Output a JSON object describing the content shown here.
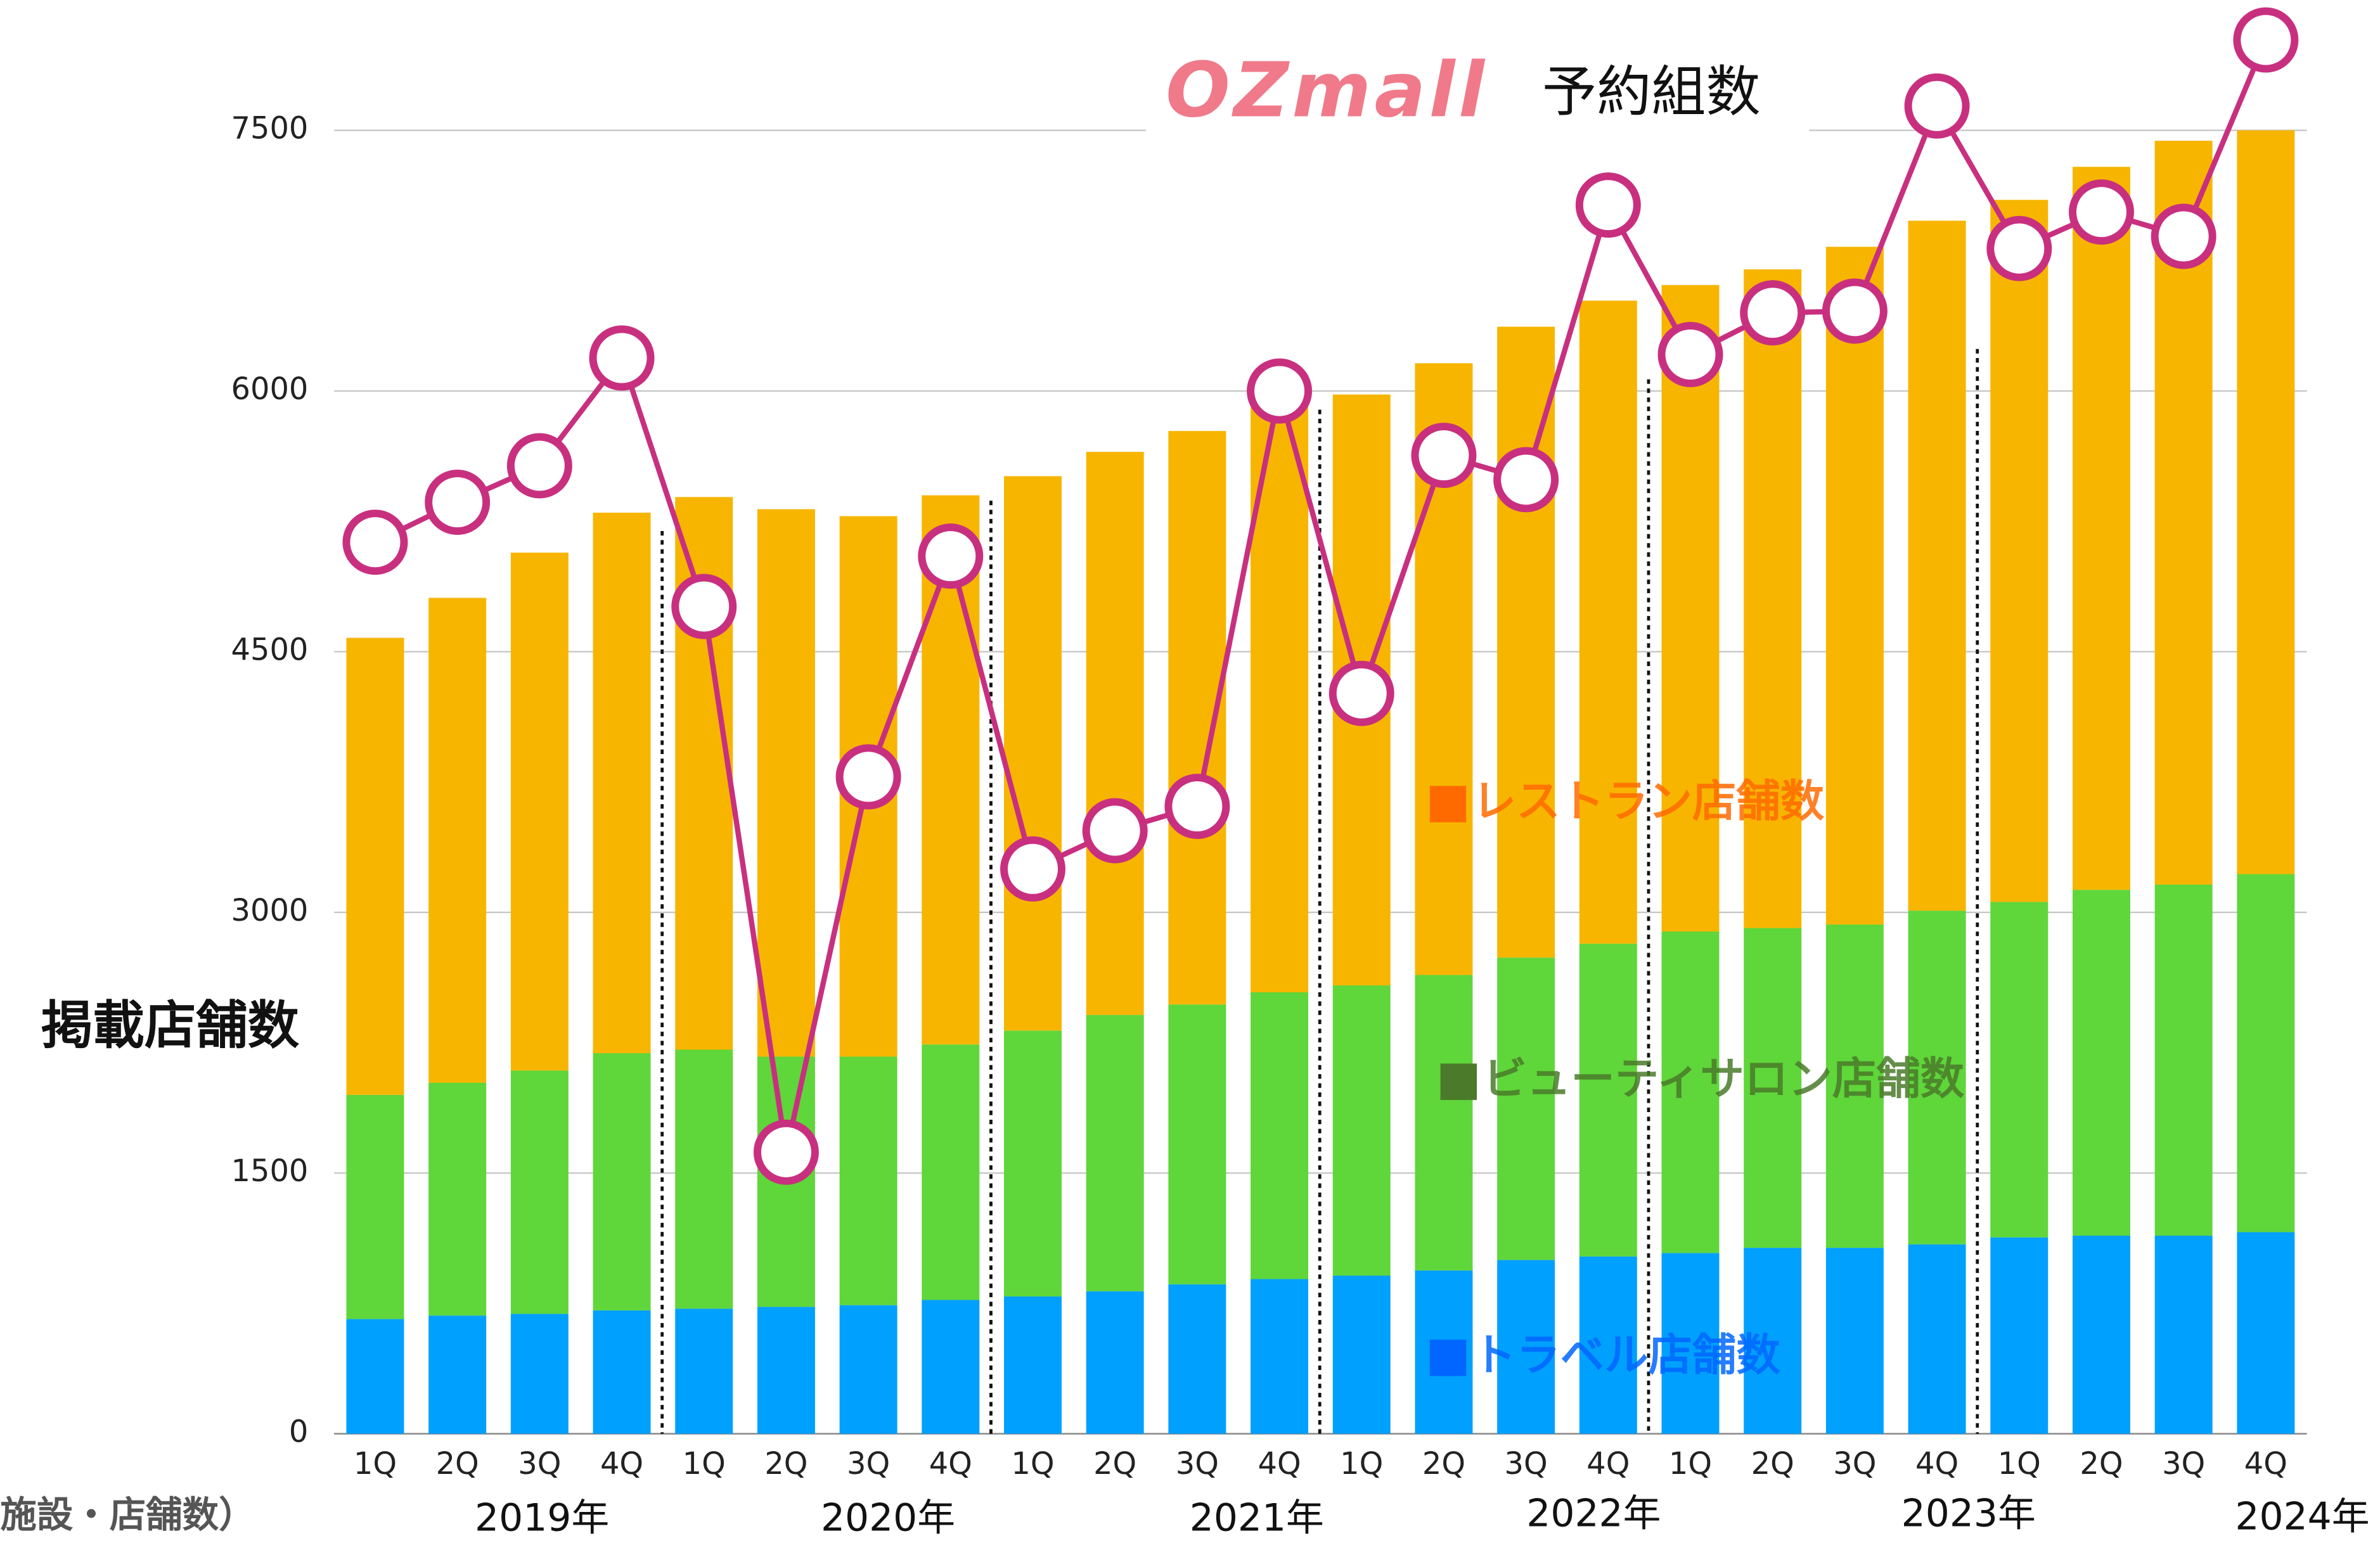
{
  "chart_data": {
    "type": "bar",
    "stacked": true,
    "logo": "OZmall",
    "y_axis_label": "掲載店舗数",
    "unit_note": "施設・店舗数）",
    "categories": [
      "1Q",
      "2Q",
      "3Q",
      "4Q",
      "1Q",
      "2Q",
      "3Q",
      "4Q",
      "1Q",
      "2Q",
      "3Q",
      "4Q",
      "1Q",
      "2Q",
      "3Q",
      "4Q",
      "1Q",
      "2Q",
      "3Q",
      "4Q",
      "1Q",
      "2Q",
      "3Q",
      "4Q"
    ],
    "years": [
      "2019年",
      "2020年",
      "2021年",
      "2022年",
      "2023年",
      "2024年"
    ],
    "ylim": [
      0,
      8250
    ],
    "yticks": [
      0,
      1500,
      3000,
      4500,
      6000,
      7500
    ],
    "grid": true,
    "series": [
      {
        "name": "トラベル店舗数",
        "color": "#00a0ff",
        "legend_color": "#0066ff",
        "values": [
          660,
          680,
          690,
          710,
          720,
          730,
          740,
          770,
          790,
          820,
          860,
          890,
          910,
          940,
          1000,
          1020,
          1040,
          1070,
          1070,
          1090,
          1130,
          1140,
          1140,
          1160
        ]
      },
      {
        "name": "ビューティサロン店舗数",
        "color": "#5fd63a",
        "legend_color": "#4a7a2a",
        "values": [
          1290,
          1340,
          1400,
          1480,
          1490,
          1440,
          1430,
          1470,
          1530,
          1590,
          1610,
          1650,
          1670,
          1700,
          1740,
          1800,
          1850,
          1840,
          1860,
          1920,
          1930,
          1990,
          2020,
          2060
        ]
      },
      {
        "name": "レストラン店舗数",
        "color": "#f7b500",
        "legend_color": "#ff6a00",
        "values": [
          2630,
          2790,
          2980,
          3110,
          3180,
          3150,
          3110,
          3160,
          3190,
          3240,
          3300,
          3400,
          3400,
          3520,
          3630,
          3700,
          3720,
          3790,
          3900,
          3970,
          4040,
          4160,
          4280,
          4280
        ]
      }
    ],
    "line": {
      "name": "予約組数",
      "color": "#c8307f",
      "values": [
        5130,
        5360,
        5570,
        6190,
        4760,
        1620,
        3780,
        5050,
        3250,
        3470,
        3610,
        6000,
        4260,
        5630,
        5490,
        7070,
        6210,
        6450,
        6460,
        7640,
        6820,
        7030,
        6890,
        8020
      ]
    }
  }
}
